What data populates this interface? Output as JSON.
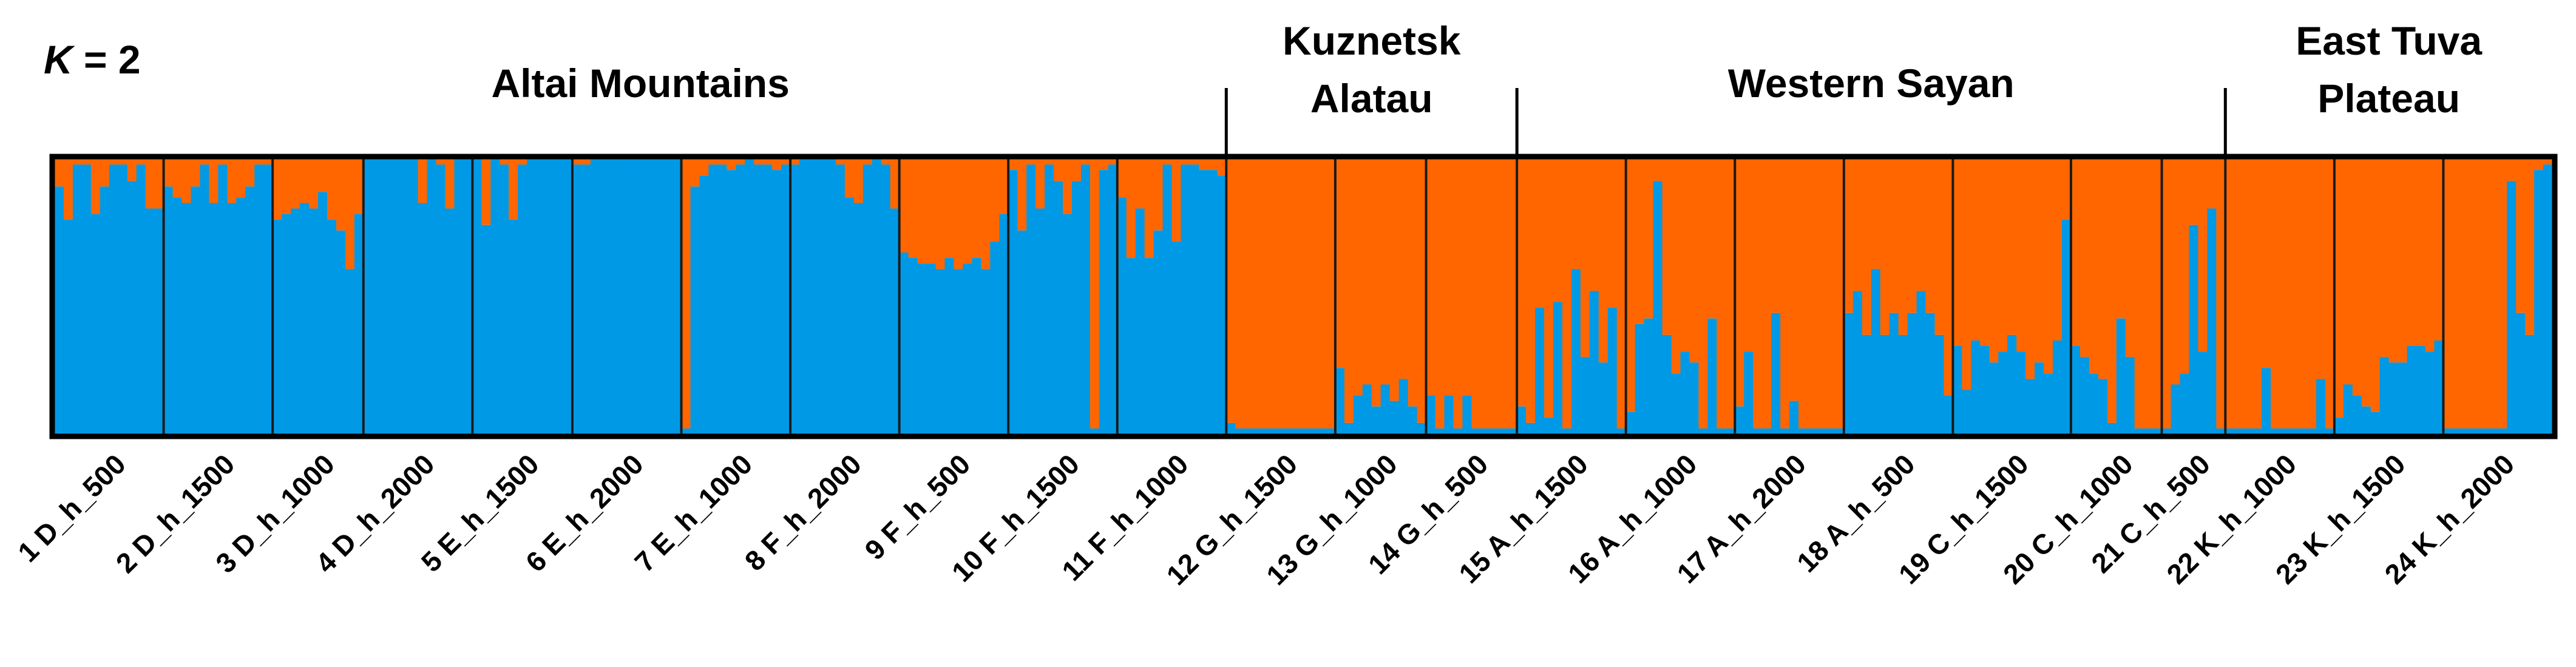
{
  "k_label": {
    "k": "K",
    "rest": " = 2"
  },
  "colors": {
    "cluster_1": "#FF6600",
    "cluster_2": "#0099E6",
    "frame": "#000000",
    "divider": "#1a1a1a"
  },
  "regions": [
    {
      "label_lines": [
        "Altai Mountains"
      ],
      "first_population": 1,
      "last_population": 11
    },
    {
      "label_lines": [
        "Kuznetsk",
        "Alatau"
      ],
      "first_population": 12,
      "last_population": 14
    },
    {
      "label_lines": [
        "Western Sayan"
      ],
      "first_population": 15,
      "last_population": 21
    },
    {
      "label_lines": [
        "East Tuva",
        "Plateau"
      ],
      "first_population": 22,
      "last_population": 24
    }
  ],
  "chart_data": {
    "type": "bar",
    "stacked": true,
    "ylim": [
      0,
      1
    ],
    "series": [
      {
        "id": "cluster_1",
        "color": "#FF6600"
      },
      {
        "id": "cluster_2",
        "color": "#0099E6"
      }
    ],
    "value_meaning": "fraction of cluster_2 (blue) ancestry per individual; cluster_1 (orange) = 1 - value",
    "populations": [
      {
        "label": "1 D_h_500",
        "values": [
          0.9,
          0.78,
          0.98,
          0.98,
          0.8,
          0.9,
          0.98,
          0.98,
          0.92,
          0.98,
          0.82,
          0.82
        ]
      },
      {
        "label": "2 D_h_1500",
        "values": [
          0.9,
          0.86,
          0.84,
          0.9,
          0.98,
          0.84,
          0.98,
          0.84,
          0.86,
          0.9,
          0.98,
          0.98
        ]
      },
      {
        "label": "3 D_h_1000",
        "values": [
          0.78,
          0.8,
          0.82,
          0.84,
          0.82,
          0.88,
          0.78,
          0.74,
          0.6,
          0.8
        ]
      },
      {
        "label": "4 D_h_2000",
        "values": [
          1,
          1,
          1,
          1,
          1,
          1,
          0.84,
          1,
          0.98,
          0.82,
          1,
          1
        ]
      },
      {
        "label": "5 E_h_1500",
        "values": [
          1,
          0.76,
          1,
          0.98,
          0.78,
          0.98,
          1,
          1,
          1,
          1,
          1
        ]
      },
      {
        "label": "6 E_h_2000",
        "values": [
          0.98,
          0.98,
          1,
          1,
          1,
          1,
          1,
          1,
          1,
          1,
          1,
          1
        ]
      },
      {
        "label": "7 E_h_1000",
        "values": [
          0.02,
          0.9,
          0.94,
          0.98,
          0.98,
          0.96,
          0.98,
          1,
          0.98,
          0.98,
          0.96,
          0.98
        ]
      },
      {
        "label": "8 F_h_2000",
        "values": [
          0.98,
          1,
          1,
          1,
          1,
          0.98,
          0.86,
          0.84,
          0.98,
          1,
          0.98,
          0.82
        ]
      },
      {
        "label": "9 F_h_500",
        "values": [
          0.66,
          0.64,
          0.62,
          0.62,
          0.6,
          0.64,
          0.6,
          0.62,
          0.64,
          0.6,
          0.7,
          0.8
        ]
      },
      {
        "label": "10 F_h_1500",
        "values": [
          0.96,
          0.74,
          0.98,
          0.82,
          0.98,
          0.92,
          0.8,
          0.92,
          0.98,
          0.02,
          0.96,
          0.98
        ]
      },
      {
        "label": "11 F_h_1000",
        "values": [
          0.86,
          0.64,
          0.82,
          0.64,
          0.74,
          0.98,
          0.7,
          0.98,
          0.98,
          0.96,
          0.96,
          0.94
        ]
      },
      {
        "label": "12 G_h_1500",
        "values": [
          0.04,
          0.02,
          0.02,
          0.02,
          0.02,
          0.02,
          0.02,
          0.02,
          0.02,
          0.02,
          0.02,
          0.02
        ]
      },
      {
        "label": "13 G_h_1000",
        "values": [
          0.24,
          0.04,
          0.14,
          0.18,
          0.1,
          0.18,
          0.12,
          0.2,
          0.1,
          0.04
        ]
      },
      {
        "label": "14 G_h_500",
        "values": [
          0.14,
          0.02,
          0.14,
          0.02,
          0.14,
          0.02,
          0.02,
          0.02,
          0.02,
          0.02
        ]
      },
      {
        "label": "15 A_h_1500",
        "values": [
          0.1,
          0.04,
          0.46,
          0.06,
          0.48,
          0.02,
          0.6,
          0.28,
          0.52,
          0.26,
          0.46,
          0.02
        ]
      },
      {
        "label": "16 A_h_1000",
        "values": [
          0.08,
          0.4,
          0.42,
          0.92,
          0.36,
          0.22,
          0.3,
          0.26,
          0.02,
          0.42,
          0.02,
          0.02
        ]
      },
      {
        "label": "17 A_h_2000",
        "values": [
          0.1,
          0.3,
          0.02,
          0.02,
          0.44,
          0.02,
          0.12,
          0.02,
          0.02,
          0.02,
          0.02,
          0.02
        ]
      },
      {
        "label": "18 A_h_500",
        "values": [
          0.44,
          0.52,
          0.36,
          0.6,
          0.36,
          0.44,
          0.36,
          0.44,
          0.52,
          0.44,
          0.36,
          0.14
        ]
      },
      {
        "label": "19 C_h_1500",
        "values": [
          0.32,
          0.16,
          0.34,
          0.32,
          0.26,
          0.3,
          0.36,
          0.3,
          0.2,
          0.26,
          0.22,
          0.34,
          0.78
        ]
      },
      {
        "label": "20 C_h_1000",
        "values": [
          0.32,
          0.28,
          0.22,
          0.2,
          0.04,
          0.42,
          0.28,
          0.02,
          0.02,
          0.02
        ]
      },
      {
        "label": "21 C_h_500",
        "values": [
          0.02,
          0.18,
          0.22,
          0.76,
          0.3,
          0.82,
          0.02
        ]
      },
      {
        "label": "22 K_h_1000",
        "values": [
          0.02,
          0.02,
          0.02,
          0.02,
          0.24,
          0.02,
          0.02,
          0.02,
          0.02,
          0.02,
          0.2,
          0.02
        ]
      },
      {
        "label": "23 K_h_1500",
        "values": [
          0.06,
          0.18,
          0.14,
          0.1,
          0.08,
          0.28,
          0.26,
          0.26,
          0.32,
          0.32,
          0.3,
          0.34
        ]
      },
      {
        "label": "24 K_h_2000",
        "values": [
          0.02,
          0.02,
          0.02,
          0.02,
          0.02,
          0.02,
          0.02,
          0.92,
          0.44,
          0.36,
          0.96,
          0.98
        ]
      }
    ]
  }
}
